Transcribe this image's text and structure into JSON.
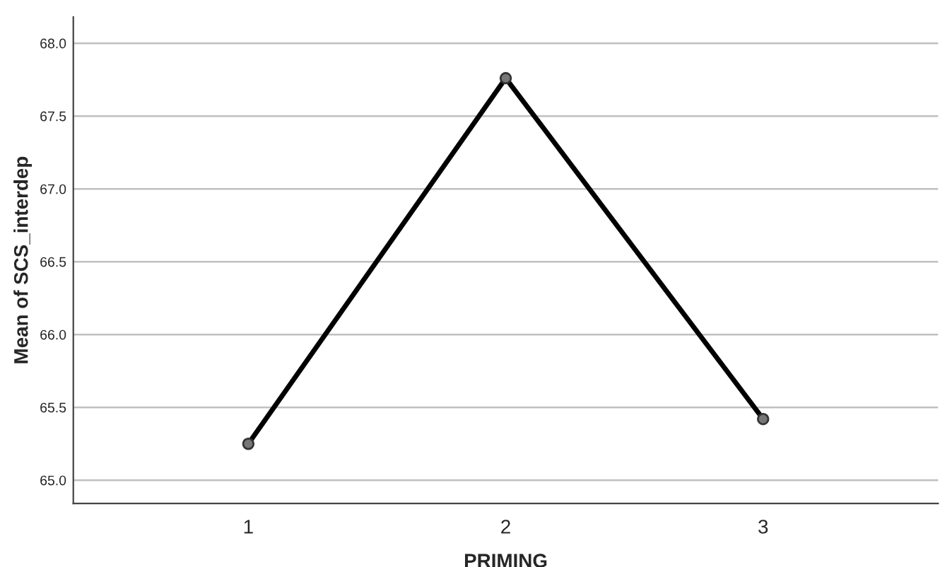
{
  "chart_data": {
    "type": "line",
    "xlabel": "PRIMING",
    "ylabel": "Mean of SCS_interdep",
    "categories": [
      "1",
      "2",
      "3"
    ],
    "series": [
      {
        "color": "#000000",
        "values": [
          65.25,
          67.76,
          65.42
        ]
      }
    ],
    "ylim": [
      64.84,
      68.18
    ],
    "yticks": [
      {
        "value": 65.0,
        "label": "65.0"
      },
      {
        "value": 65.5,
        "label": "65.5"
      },
      {
        "value": 66.0,
        "label": "66.0"
      },
      {
        "value": 66.5,
        "label": "66.5"
      },
      {
        "value": 67.0,
        "label": "67.0"
      },
      {
        "value": 67.5,
        "label": "67.5"
      },
      {
        "value": 68.0,
        "label": "68.0"
      }
    ],
    "grid": "y",
    "marker": "circle",
    "line_style": "solid"
  }
}
